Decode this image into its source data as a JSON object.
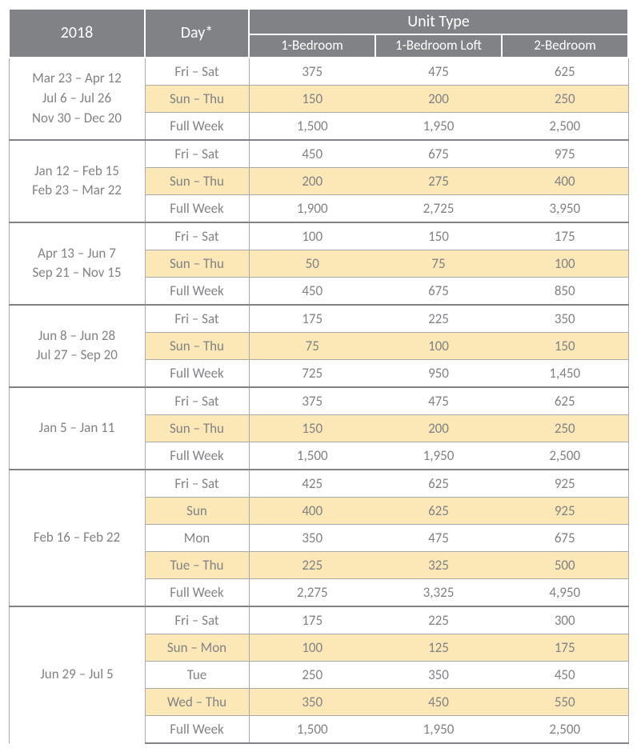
{
  "colors": {
    "header_bg": "#808285",
    "header_text": "#ffffff",
    "body_text": "#808285",
    "rule_thin": "#a7a9ac",
    "rule_thick": "#808285",
    "highlight_bg": "#fce8b6",
    "page_bg": "#ffffff"
  },
  "typography": {
    "header_fontsize_pt": 15,
    "subheader_fontsize_pt": 13,
    "body_fontsize_pt": 13,
    "font_family": "Gill Sans / light sans-serif"
  },
  "header": {
    "year": "2018",
    "day": "Day*",
    "unit_group": "Unit Type",
    "units": [
      "1-Bedroom",
      "1-Bedroom Loft",
      "2-Bedroom"
    ]
  },
  "groups": [
    {
      "dates": [
        "Mar 23 – Apr 12",
        "Jul 6 – Jul 26",
        "Nov 30 – Dec 20"
      ],
      "rows": [
        {
          "day": "Fri – Sat",
          "values": [
            "375",
            "475",
            "625"
          ],
          "highlight": false
        },
        {
          "day": "Sun – Thu",
          "values": [
            "150",
            "200",
            "250"
          ],
          "highlight": true
        },
        {
          "day": "Full Week",
          "values": [
            "1,500",
            "1,950",
            "2,500"
          ],
          "highlight": false
        }
      ]
    },
    {
      "dates": [
        "Jan 12 – Feb 15",
        "Feb 23 – Mar 22"
      ],
      "rows": [
        {
          "day": "Fri – Sat",
          "values": [
            "450",
            "675",
            "975"
          ],
          "highlight": false
        },
        {
          "day": "Sun – Thu",
          "values": [
            "200",
            "275",
            "400"
          ],
          "highlight": true
        },
        {
          "day": "Full Week",
          "values": [
            "1,900",
            "2,725",
            "3,950"
          ],
          "highlight": false
        }
      ]
    },
    {
      "dates": [
        "Apr 13 – Jun 7",
        "Sep 21 – Nov 15"
      ],
      "rows": [
        {
          "day": "Fri – Sat",
          "values": [
            "100",
            "150",
            "175"
          ],
          "highlight": false
        },
        {
          "day": "Sun – Thu",
          "values": [
            "50",
            "75",
            "100"
          ],
          "highlight": true
        },
        {
          "day": "Full Week",
          "values": [
            "450",
            "675",
            "850"
          ],
          "highlight": false
        }
      ]
    },
    {
      "dates": [
        "Jun 8 – Jun 28",
        "Jul 27 – Sep 20"
      ],
      "rows": [
        {
          "day": "Fri – Sat",
          "values": [
            "175",
            "225",
            "350"
          ],
          "highlight": false
        },
        {
          "day": "Sun – Thu",
          "values": [
            "75",
            "100",
            "150"
          ],
          "highlight": true
        },
        {
          "day": "Full Week",
          "values": [
            "725",
            "950",
            "1,450"
          ],
          "highlight": false
        }
      ]
    },
    {
      "dates": [
        "Jan 5 – Jan 11"
      ],
      "rows": [
        {
          "day": "Fri – Sat",
          "values": [
            "375",
            "475",
            "625"
          ],
          "highlight": false
        },
        {
          "day": "Sun – Thu",
          "values": [
            "150",
            "200",
            "250"
          ],
          "highlight": true
        },
        {
          "day": "Full Week",
          "values": [
            "1,500",
            "1,950",
            "2,500"
          ],
          "highlight": false
        }
      ]
    },
    {
      "dates": [
        "Feb 16 – Feb 22"
      ],
      "rows": [
        {
          "day": "Fri – Sat",
          "values": [
            "425",
            "625",
            "925"
          ],
          "highlight": false
        },
        {
          "day": "Sun",
          "values": [
            "400",
            "625",
            "925"
          ],
          "highlight": true
        },
        {
          "day": "Mon",
          "values": [
            "350",
            "475",
            "675"
          ],
          "highlight": false
        },
        {
          "day": "Tue – Thu",
          "values": [
            "225",
            "325",
            "500"
          ],
          "highlight": true
        },
        {
          "day": "Full Week",
          "values": [
            "2,275",
            "3,325",
            "4,950"
          ],
          "highlight": false
        }
      ]
    },
    {
      "dates": [
        "Jun 29 – Jul 5"
      ],
      "rows": [
        {
          "day": "Fri – Sat",
          "values": [
            "175",
            "225",
            "300"
          ],
          "highlight": false
        },
        {
          "day": "Sun – Mon",
          "values": [
            "100",
            "125",
            "175"
          ],
          "highlight": true
        },
        {
          "day": "Tue",
          "values": [
            "250",
            "350",
            "450"
          ],
          "highlight": false
        },
        {
          "day": "Wed – Thu",
          "values": [
            "350",
            "450",
            "550"
          ],
          "highlight": true
        },
        {
          "day": "Full Week",
          "values": [
            "1,500",
            "1,950",
            "2,500"
          ],
          "highlight": false
        }
      ]
    }
  ]
}
